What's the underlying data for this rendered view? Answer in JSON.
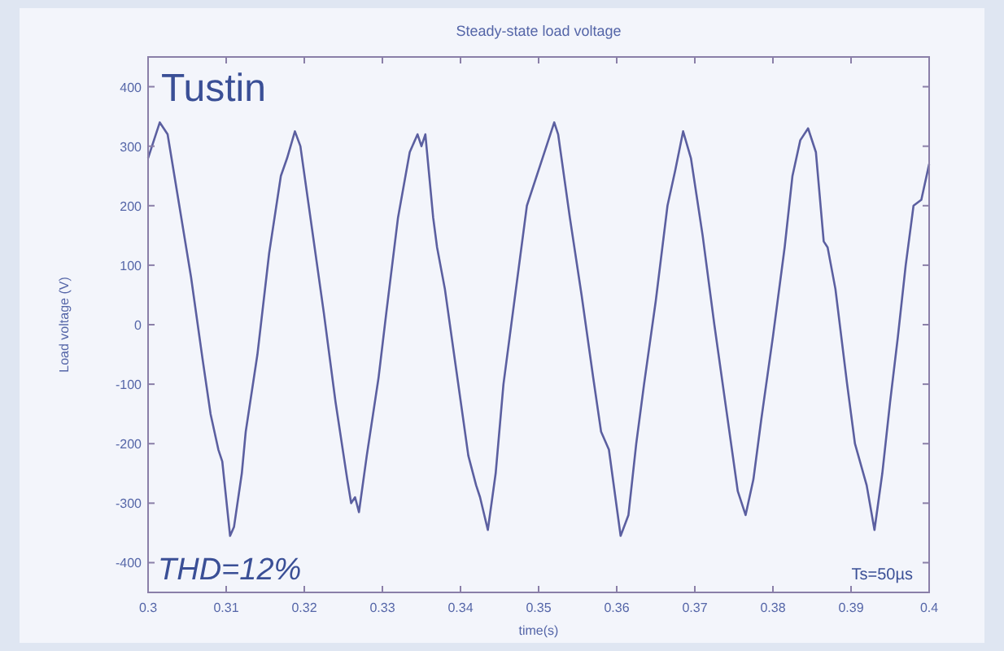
{
  "chart_data": {
    "type": "line",
    "title": "Steady-state load voltage",
    "xlabel": "time(s)",
    "ylabel": "Load voltage (V)",
    "annotations": [
      "Tustin",
      "THD=12%",
      "Ts=50µs"
    ],
    "xlim": [
      0.3,
      0.4
    ],
    "xticks": [
      0.3,
      0.31,
      0.32,
      0.33,
      0.34,
      0.35,
      0.36,
      0.37,
      0.38,
      0.39,
      0.4
    ],
    "ylim": [
      -450,
      450
    ],
    "yticks": [
      -400,
      -300,
      -200,
      -100,
      0,
      100,
      200,
      300,
      400
    ],
    "grid": false,
    "series": [
      {
        "color": "#5b5fa0",
        "x": [
          0.3,
          0.3005,
          0.3015,
          0.302,
          0.3025,
          0.304,
          0.3055,
          0.307,
          0.308,
          0.309,
          0.3095,
          0.3105,
          0.311,
          0.312,
          0.3125,
          0.314,
          0.3155,
          0.317,
          0.3178,
          0.3188,
          0.3195,
          0.321,
          0.3225,
          0.324,
          0.3255,
          0.326,
          0.3265,
          0.327,
          0.328,
          0.3295,
          0.3305,
          0.332,
          0.3335,
          0.3345,
          0.335,
          0.3355,
          0.3365,
          0.337,
          0.338,
          0.3395,
          0.341,
          0.342,
          0.3425,
          0.3435,
          0.3445,
          0.3455,
          0.347,
          0.3485,
          0.3505,
          0.352,
          0.3525,
          0.354,
          0.3555,
          0.357,
          0.358,
          0.359,
          0.3605,
          0.3615,
          0.3625,
          0.3635,
          0.365,
          0.3665,
          0.3675,
          0.3685,
          0.3695,
          0.371,
          0.3725,
          0.374,
          0.3755,
          0.3765,
          0.3775,
          0.3785,
          0.38,
          0.3815,
          0.3825,
          0.3835,
          0.3845,
          0.3855,
          0.3865,
          0.387,
          0.388,
          0.3895,
          0.3905,
          0.392,
          0.393,
          0.394,
          0.395,
          0.396,
          0.397,
          0.398,
          0.399,
          0.4
        ],
        "values": [
          280,
          300,
          340,
          330,
          320,
          200,
          80,
          -60,
          -150,
          -210,
          -230,
          -355,
          -340,
          -250,
          -180,
          -50,
          120,
          250,
          280,
          325,
          300,
          160,
          20,
          -130,
          -260,
          -300,
          -290,
          -315,
          -220,
          -90,
          20,
          180,
          290,
          320,
          300,
          320,
          180,
          130,
          60,
          -80,
          -220,
          -270,
          -290,
          -345,
          -250,
          -100,
          50,
          200,
          280,
          340,
          320,
          180,
          50,
          -90,
          -180,
          -210,
          -355,
          -320,
          -200,
          -100,
          40,
          200,
          260,
          325,
          280,
          150,
          0,
          -140,
          -280,
          -320,
          -260,
          -160,
          -20,
          130,
          250,
          310,
          330,
          290,
          140,
          130,
          60,
          -100,
          -200,
          -270,
          -345,
          -250,
          -130,
          -20,
          100,
          200,
          210,
          270
        ]
      }
    ]
  }
}
